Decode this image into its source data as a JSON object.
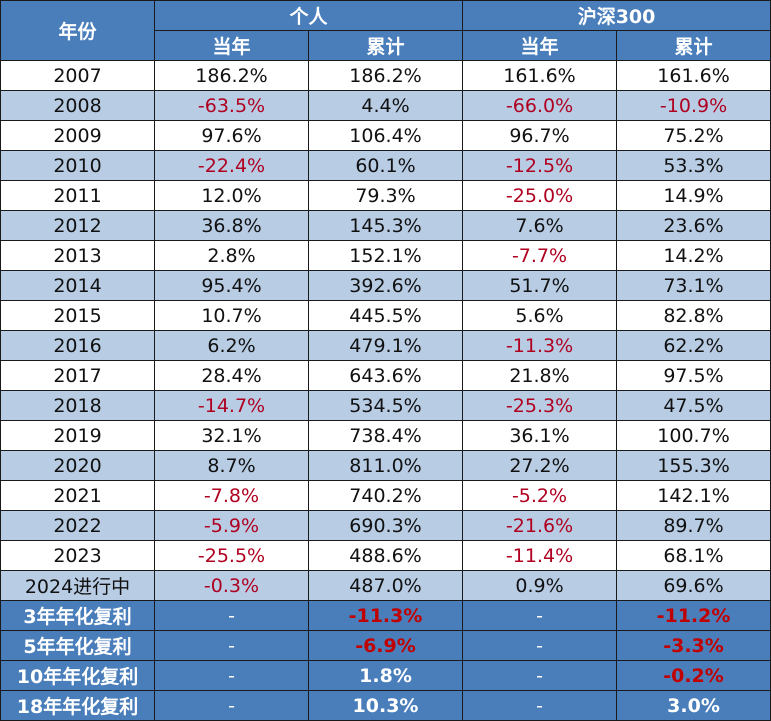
{
  "header": {
    "year_label": "年份",
    "group_personal": "个人",
    "group_index": "沪深300",
    "sub_current": "当年",
    "sub_cumulative": "累计"
  },
  "rows": [
    {
      "year": "2007",
      "p_year": "186.2%",
      "p_cum": "186.2%",
      "i_year": "161.6%",
      "i_cum": "161.6%"
    },
    {
      "year": "2008",
      "p_year": "-63.5%",
      "p_cum": "4.4%",
      "i_year": "-66.0%",
      "i_cum": "-10.9%"
    },
    {
      "year": "2009",
      "p_year": "97.6%",
      "p_cum": "106.4%",
      "i_year": "96.7%",
      "i_cum": "75.2%"
    },
    {
      "year": "2010",
      "p_year": "-22.4%",
      "p_cum": "60.1%",
      "i_year": "-12.5%",
      "i_cum": "53.3%"
    },
    {
      "year": "2011",
      "p_year": "12.0%",
      "p_cum": "79.3%",
      "i_year": "-25.0%",
      "i_cum": "14.9%"
    },
    {
      "year": "2012",
      "p_year": "36.8%",
      "p_cum": "145.3%",
      "i_year": "7.6%",
      "i_cum": "23.6%"
    },
    {
      "year": "2013",
      "p_year": "2.8%",
      "p_cum": "152.1%",
      "i_year": "-7.7%",
      "i_cum": "14.2%"
    },
    {
      "year": "2014",
      "p_year": "95.4%",
      "p_cum": "392.6%",
      "i_year": "51.7%",
      "i_cum": "73.1%"
    },
    {
      "year": "2015",
      "p_year": "10.7%",
      "p_cum": "445.5%",
      "i_year": "5.6%",
      "i_cum": "82.8%"
    },
    {
      "year": "2016",
      "p_year": "6.2%",
      "p_cum": "479.1%",
      "i_year": "-11.3%",
      "i_cum": "62.2%"
    },
    {
      "year": "2017",
      "p_year": "28.4%",
      "p_cum": "643.6%",
      "i_year": "21.8%",
      "i_cum": "97.5%"
    },
    {
      "year": "2018",
      "p_year": "-14.7%",
      "p_cum": "534.5%",
      "i_year": "-25.3%",
      "i_cum": "47.5%"
    },
    {
      "year": "2019",
      "p_year": "32.1%",
      "p_cum": "738.4%",
      "i_year": "36.1%",
      "i_cum": "100.7%"
    },
    {
      "year": "2020",
      "p_year": "8.7%",
      "p_cum": "811.0%",
      "i_year": "27.2%",
      "i_cum": "155.3%"
    },
    {
      "year": "2021",
      "p_year": "-7.8%",
      "p_cum": "740.2%",
      "i_year": "-5.2%",
      "i_cum": "142.1%"
    },
    {
      "year": "2022",
      "p_year": "-5.9%",
      "p_cum": "690.3%",
      "i_year": "-21.6%",
      "i_cum": "89.7%"
    },
    {
      "year": "2023",
      "p_year": "-25.5%",
      "p_cum": "488.6%",
      "i_year": "-11.4%",
      "i_cum": "68.1%"
    },
    {
      "year": "2024进行中",
      "p_year": "-0.3%",
      "p_cum": "487.0%",
      "i_year": "0.9%",
      "i_cum": "69.6%"
    }
  ],
  "summary": [
    {
      "label": "3年年化复利",
      "p_year": "-",
      "p_cum": "-11.3%",
      "i_year": "-",
      "i_cum": "-11.2%"
    },
    {
      "label": "5年年化复利",
      "p_year": "-",
      "p_cum": "-6.9%",
      "i_year": "-",
      "i_cum": "-3.3%"
    },
    {
      "label": "10年年化复利",
      "p_year": "-",
      "p_cum": "1.8%",
      "i_year": "-",
      "i_cum": "-0.2%"
    },
    {
      "label": "18年年化复利",
      "p_year": "-",
      "p_cum": "10.3%",
      "i_year": "-",
      "i_cum": "3.0%"
    }
  ],
  "colors": {
    "header_bg": "#4a7ebb",
    "stripe_bg": "#b8cce4",
    "negative_text": "#b00020"
  }
}
